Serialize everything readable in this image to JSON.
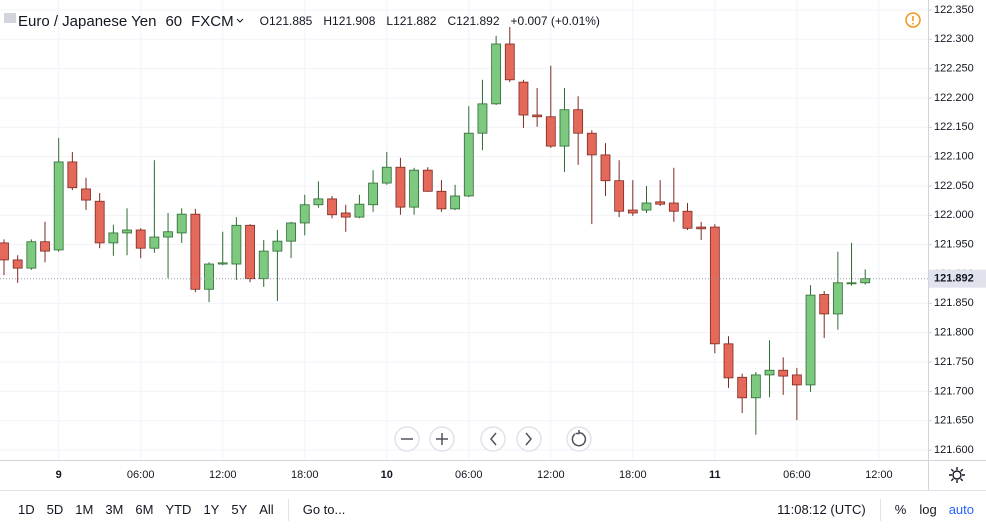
{
  "legend": {
    "symbol": "Euro / Japanese Yen",
    "interval": "60",
    "source": "FXCM",
    "ohlc": [
      "O121.885",
      "H121.908",
      "L121.882",
      "C121.892"
    ],
    "change": "+0.007 (+0.01%)"
  },
  "chart_data": {
    "type": "candlestick",
    "categories": [
      null,
      null,
      null,
      null,
      "9",
      null,
      null,
      null,
      null,
      null,
      "06:00",
      null,
      null,
      null,
      null,
      null,
      "12:00",
      null,
      null,
      null,
      null,
      null,
      "18:00",
      null,
      null,
      null,
      null,
      null,
      "10",
      null,
      null,
      null,
      null,
      null,
      "06:00",
      null,
      null,
      null,
      null,
      null,
      "12:00",
      null,
      null,
      null,
      null,
      null,
      "18:00",
      null,
      null,
      null,
      null,
      null,
      "11",
      null,
      null,
      null,
      null,
      null,
      "06:00",
      null,
      null,
      null,
      null,
      null,
      "12:00",
      null
    ],
    "open": [
      121.953,
      121.924,
      121.91,
      121.955,
      121.941,
      122.091,
      122.045,
      122.024,
      121.953,
      121.97,
      121.975,
      121.944,
      121.963,
      121.97,
      122.002,
      121.874,
      121.917,
      121.917,
      121.983,
      121.892,
      121.939,
      121.956,
      121.987,
      122.018,
      122.028,
      122.004,
      121.997,
      122.018,
      122.055,
      122.082,
      122.014,
      122.077,
      122.041,
      122.011,
      122.033,
      122.14,
      122.19,
      122.292,
      122.227,
      122.171,
      122.168,
      122.118,
      122.18,
      122.14,
      122.103,
      122.059,
      122.009,
      122.009,
      122.023,
      122.021,
      122.007,
      121.98,
      121.98,
      121.781,
      121.724,
      121.689,
      121.728,
      121.736,
      121.728,
      121.711,
      121.865,
      121.832,
      121.885,
      121.885,
      null,
      null
    ],
    "high": [
      121.959,
      121.932,
      121.959,
      121.989,
      122.132,
      122.108,
      122.064,
      122.038,
      121.984,
      122.012,
      121.978,
      122.094,
      122.004,
      122.012,
      122.011,
      121.92,
      121.972,
      121.997,
      121.985,
      121.958,
      121.975,
      121.989,
      122.035,
      122.058,
      122.033,
      122.018,
      122.035,
      122.077,
      122.108,
      122.098,
      122.081,
      122.082,
      122.06,
      122.052,
      122.186,
      122.231,
      122.306,
      122.321,
      122.231,
      122.217,
      122.255,
      122.217,
      122.203,
      122.145,
      122.123,
      122.094,
      122.06,
      122.05,
      122.06,
      122.081,
      122.021,
      121.989,
      121.985,
      121.794,
      121.73,
      121.733,
      121.787,
      121.758,
      121.74,
      121.881,
      121.871,
      121.938,
      121.953,
      121.908,
      null,
      null
    ],
    "low": [
      121.898,
      121.885,
      121.907,
      121.92,
      121.938,
      122.043,
      122.009,
      121.944,
      121.931,
      121.932,
      121.927,
      121.936,
      121.893,
      121.953,
      121.869,
      121.852,
      121.915,
      121.89,
      121.886,
      121.878,
      121.854,
      121.927,
      121.966,
      122.013,
      121.995,
      121.972,
      121.995,
      122.006,
      122.052,
      122.001,
      122.001,
      122.04,
      122.006,
      122.009,
      122.031,
      122.111,
      122.188,
      122.227,
      122.149,
      122.151,
      122.115,
      122.074,
      122.086,
      121.985,
      122.033,
      121.997,
      121.999,
      122.004,
      122.016,
      121.989,
      121.975,
      121.958,
      121.765,
      121.706,
      121.663,
      121.626,
      121.69,
      121.694,
      121.651,
      121.699,
      121.791,
      121.805,
      121.88,
      121.882,
      null,
      null
    ],
    "close": [
      121.924,
      121.91,
      121.955,
      121.939,
      122.091,
      122.047,
      122.026,
      121.953,
      121.97,
      121.975,
      121.944,
      121.963,
      121.972,
      122.002,
      121.874,
      121.917,
      121.919,
      121.983,
      121.892,
      121.939,
      121.956,
      121.987,
      122.018,
      122.028,
      122.001,
      121.997,
      122.019,
      122.055,
      122.082,
      122.014,
      122.077,
      122.041,
      122.011,
      122.033,
      122.14,
      122.19,
      122.292,
      122.231,
      122.171,
      122.168,
      122.118,
      122.18,
      122.14,
      122.103,
      122.059,
      122.007,
      122.004,
      122.021,
      122.019,
      122.007,
      121.978,
      121.977,
      121.781,
      121.723,
      121.689,
      121.728,
      121.736,
      121.726,
      121.711,
      121.864,
      121.832,
      121.885,
      121.885,
      121.892,
      null,
      null
    ],
    "up_color": "#7cc97f",
    "down_color": "#e4695a",
    "ylim": [
      121.583,
      122.367
    ],
    "yticks": [
      {
        "value": 121.6,
        "label": "121.600"
      },
      {
        "value": 121.65,
        "label": "121.650"
      },
      {
        "value": 121.7,
        "label": "121.700"
      },
      {
        "value": 121.75,
        "label": "121.750"
      },
      {
        "value": 121.8,
        "label": "121.800"
      },
      {
        "value": 121.85,
        "label": "121.850"
      },
      {
        "value": 121.9,
        "label": "121.900"
      },
      {
        "value": 121.95,
        "label": "121.950"
      },
      {
        "value": 122.0,
        "label": "122.000"
      },
      {
        "value": 122.05,
        "label": "122.050"
      },
      {
        "value": 122.1,
        "label": "122.100"
      },
      {
        "value": 122.15,
        "label": "122.150"
      },
      {
        "value": 122.2,
        "label": "122.200"
      },
      {
        "value": 122.25,
        "label": "122.250"
      },
      {
        "value": 122.3,
        "label": "122.300"
      },
      {
        "value": 122.35,
        "label": "122.350"
      }
    ],
    "grid": true
  },
  "toolbar": {
    "ranges": [
      "1D",
      "5D",
      "1M",
      "3M",
      "6M",
      "YTD",
      "1Y",
      "5Y",
      "All"
    ],
    "goto": "Go to...",
    "clock": "11:08:12 (UTC)",
    "options": [
      "%",
      "log",
      "auto"
    ]
  }
}
